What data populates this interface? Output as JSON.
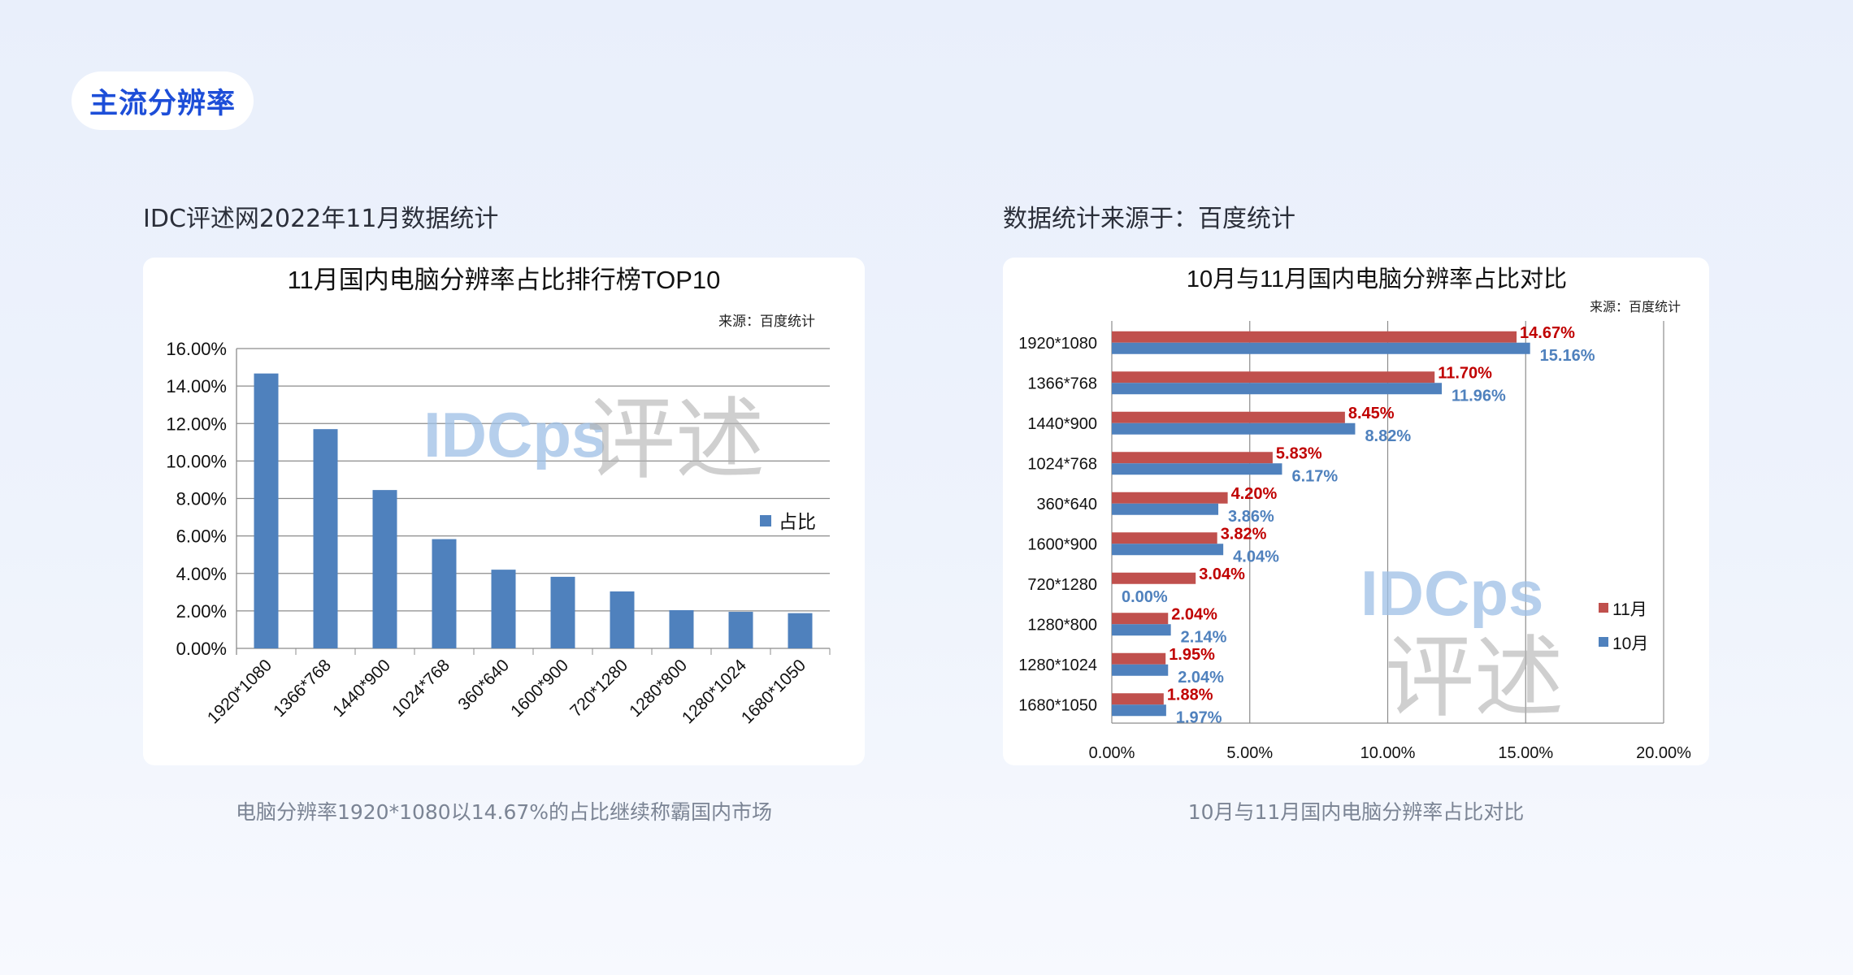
{
  "section_tag": "主流分辨率",
  "left": {
    "subtitle": "IDC评述网2022年11月数据统计",
    "caption": "电脑分辨率1920*1080以14.67%的占比继续称霸国内市场"
  },
  "right": {
    "subtitle": "数据统计来源于：百度统计",
    "caption": "10月与11月国内电脑分辨率占比对比"
  },
  "watermark": "IDCps 评述",
  "chart_data": [
    {
      "type": "bar",
      "title": "11月国内电脑分辨率占比排行榜TOP10",
      "source": "来源：百度统计",
      "categories": [
        "1920*1080",
        "1366*768",
        "1440*900",
        "1024*768",
        "360*640",
        "1600*900",
        "720*1280",
        "1280*800",
        "1280*1024",
        "1680*1050"
      ],
      "series": [
        {
          "name": "占比",
          "values": [
            14.67,
            11.7,
            8.45,
            5.83,
            4.2,
            3.82,
            3.04,
            2.04,
            1.95,
            1.88
          ],
          "color": "#4f81bd"
        }
      ],
      "ylim": [
        0,
        16
      ],
      "yticks": [
        "0.00%",
        "2.00%",
        "4.00%",
        "6.00%",
        "8.00%",
        "10.00%",
        "12.00%",
        "14.00%",
        "16.00%"
      ],
      "grid": true,
      "legend": "right"
    },
    {
      "type": "bar",
      "orientation": "horizontal",
      "title": "10月与11月国内电脑分辨率占比对比",
      "source": "来源：百度统计",
      "categories": [
        "1920*1080",
        "1366*768",
        "1440*900",
        "1024*768",
        "360*640",
        "1600*900",
        "720*1280",
        "1280*800",
        "1280*1024",
        "1680*1050"
      ],
      "series": [
        {
          "name": "11月",
          "values": [
            14.67,
            11.7,
            8.45,
            5.83,
            4.2,
            3.82,
            3.04,
            2.04,
            1.95,
            1.88
          ],
          "labels": [
            "14.67%",
            "11.70%",
            "8.45%",
            "5.83%",
            "4.20%",
            "3.82%",
            "3.04%",
            "2.04%",
            "1.95%",
            "1.88%"
          ],
          "color": "#c0504d",
          "label_color": "#c00000"
        },
        {
          "name": "10月",
          "values": [
            15.16,
            11.96,
            8.82,
            6.17,
            3.86,
            4.04,
            0.0,
            2.14,
            2.04,
            1.97
          ],
          "labels": [
            "15.16%",
            "11.96%",
            "8.82%",
            "6.17%",
            "3.86%",
            "4.04%",
            "0.00%",
            "2.14%",
            "2.04%",
            "1.97%"
          ],
          "color": "#4f81bd",
          "label_color": "#4f81bd"
        }
      ],
      "xlim": [
        0,
        20
      ],
      "xticks": [
        "0.00%",
        "5.00%",
        "10.00%",
        "15.00%",
        "20.00%"
      ],
      "grid": true,
      "legend": "right"
    }
  ]
}
